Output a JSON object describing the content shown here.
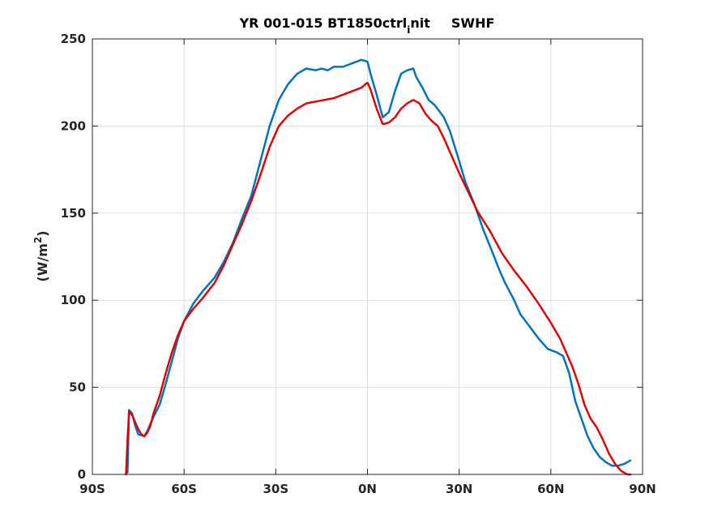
{
  "chart_data": {
    "type": "line",
    "title": "YR 001-015 BT1850ctrl",
    "title_subscript": "i",
    "title_suffix": "nit",
    "title_variable": "SWHF",
    "ylabel": "(W/m",
    "ylabel_superscript": "2",
    "ylabel_close": ")",
    "xlabel": "",
    "xlim": [
      -90,
      90
    ],
    "ylim": [
      0,
      250
    ],
    "x_ticks": [
      -90,
      -60,
      -30,
      0,
      30,
      60,
      90
    ],
    "x_tick_labels": [
      "90S",
      "60S",
      "30S",
      "0N",
      "30N",
      "60N",
      "90N"
    ],
    "y_ticks": [
      0,
      50,
      100,
      150,
      200,
      250
    ],
    "y_tick_labels": [
      "0",
      "50",
      "100",
      "150",
      "200",
      "250"
    ],
    "grid": true,
    "legend": "none",
    "series": [
      {
        "color": "#0072BD",
        "line_style": "solid",
        "x": [
          -78.5,
          -78,
          -77,
          -76,
          -75,
          -73,
          -72,
          -70,
          -68,
          -66,
          -64,
          -62,
          -60,
          -57,
          -54,
          -50,
          -47,
          -44,
          -41,
          -38,
          -35,
          -32,
          -29,
          -26,
          -23,
          -20,
          -17,
          -15,
          -13,
          -11,
          -8,
          -5,
          -2,
          0,
          1,
          3,
          5,
          7,
          9,
          11,
          13,
          15,
          16,
          17,
          18,
          20,
          22,
          25,
          27,
          30,
          32,
          35,
          38,
          41,
          43,
          45,
          48,
          50,
          53,
          56,
          59,
          62,
          64,
          66,
          68,
          70,
          72,
          74,
          76,
          78,
          80,
          82,
          84,
          85,
          86
        ],
        "y": [
          1,
          37,
          35,
          28,
          23,
          22,
          25,
          33,
          40,
          52,
          65,
          78,
          88,
          98,
          105,
          113,
          122,
          133,
          147,
          160,
          180,
          200,
          215,
          224,
          230,
          233,
          232,
          233,
          232,
          234,
          234,
          236,
          238,
          237,
          230,
          218,
          205,
          208,
          220,
          230,
          232,
          233,
          228,
          225,
          222,
          215,
          212,
          205,
          197,
          180,
          168,
          155,
          140,
          127,
          118,
          110,
          100,
          92,
          85,
          78,
          72,
          70,
          68,
          58,
          42,
          32,
          22,
          15,
          10,
          7,
          5,
          5,
          6,
          7,
          8
        ]
      },
      {
        "color": "#E00000",
        "line_style": "dashed",
        "x": [
          -79,
          -78.5,
          -78,
          -77,
          -76,
          -75,
          -74,
          -73,
          -72,
          -71,
          -70,
          -68,
          -66,
          -64,
          -62,
          -60,
          -57,
          -54,
          -50,
          -47,
          -44,
          -41,
          -38,
          -35,
          -32,
          -29,
          -26,
          -23,
          -20,
          -17,
          -14,
          -11,
          -8,
          -5,
          -2,
          0,
          1,
          3,
          5,
          7,
          9,
          11,
          13,
          15,
          17,
          19,
          21,
          23,
          25,
          27,
          30,
          33,
          36,
          40,
          44,
          48,
          52,
          56,
          60,
          63,
          65,
          67,
          69,
          71,
          73,
          75,
          77,
          79,
          81,
          83,
          85,
          86
        ],
        "y": [
          0,
          20,
          36,
          34,
          30,
          26,
          23,
          22,
          24,
          28,
          35,
          45,
          58,
          70,
          80,
          88,
          95,
          101,
          110,
          120,
          132,
          144,
          157,
          172,
          188,
          200,
          206,
          210,
          213,
          214,
          215,
          216,
          218,
          220,
          222,
          225,
          221,
          210,
          201,
          202,
          205,
          210,
          213,
          215,
          213,
          207,
          203,
          200,
          193,
          185,
          173,
          162,
          151,
          140,
          127,
          117,
          108,
          98,
          87,
          78,
          70,
          62,
          52,
          40,
          32,
          27,
          20,
          12,
          6,
          2,
          0,
          0
        ]
      }
    ]
  }
}
